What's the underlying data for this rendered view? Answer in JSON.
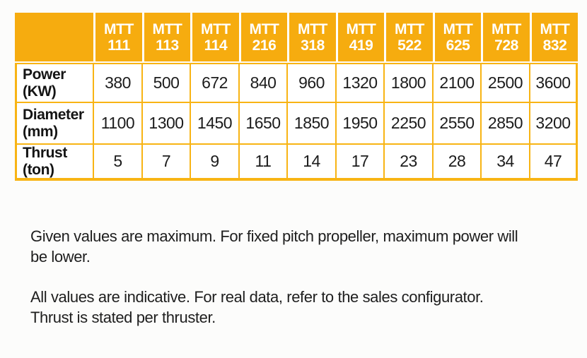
{
  "theme": {
    "orange": "#F6AC0F",
    "gridOrange": "#F8B414",
    "headerText": "#FFFFFF",
    "bodyText": "#1C1C1C",
    "pageBg": "#FCFCFB"
  },
  "table": {
    "corner_label": "",
    "columns": [
      "MTT\n111",
      "MTT\n113",
      "MTT\n114",
      "MTT\n216",
      "MTT\n318",
      "MTT\n419",
      "MTT\n522",
      "MTT\n625",
      "MTT\n728",
      "MTT\n832"
    ],
    "rows": [
      {
        "label": "Power\n(KW)",
        "values": [
          "380",
          "500",
          "672",
          "840",
          "960",
          "1320",
          "1800",
          "2100",
          "2500",
          "3600"
        ]
      },
      {
        "label": "Diameter\n(mm)",
        "values": [
          "1100",
          "1300",
          "1450",
          "1650",
          "1850",
          "1950",
          "2250",
          "2550",
          "2850",
          "3200"
        ]
      },
      {
        "label": "Thrust\n(ton)",
        "values": [
          "5",
          "7",
          "9",
          "11",
          "14",
          "17",
          "23",
          "28",
          "34",
          "47"
        ]
      }
    ]
  },
  "notes": {
    "p1": "Given values are maximum. For fixed pitch propeller, maximum power will\nbe lower.",
    "p2": "All values are indicative. For real data, refer to the sales configurator.\nThrust is stated per thruster."
  }
}
